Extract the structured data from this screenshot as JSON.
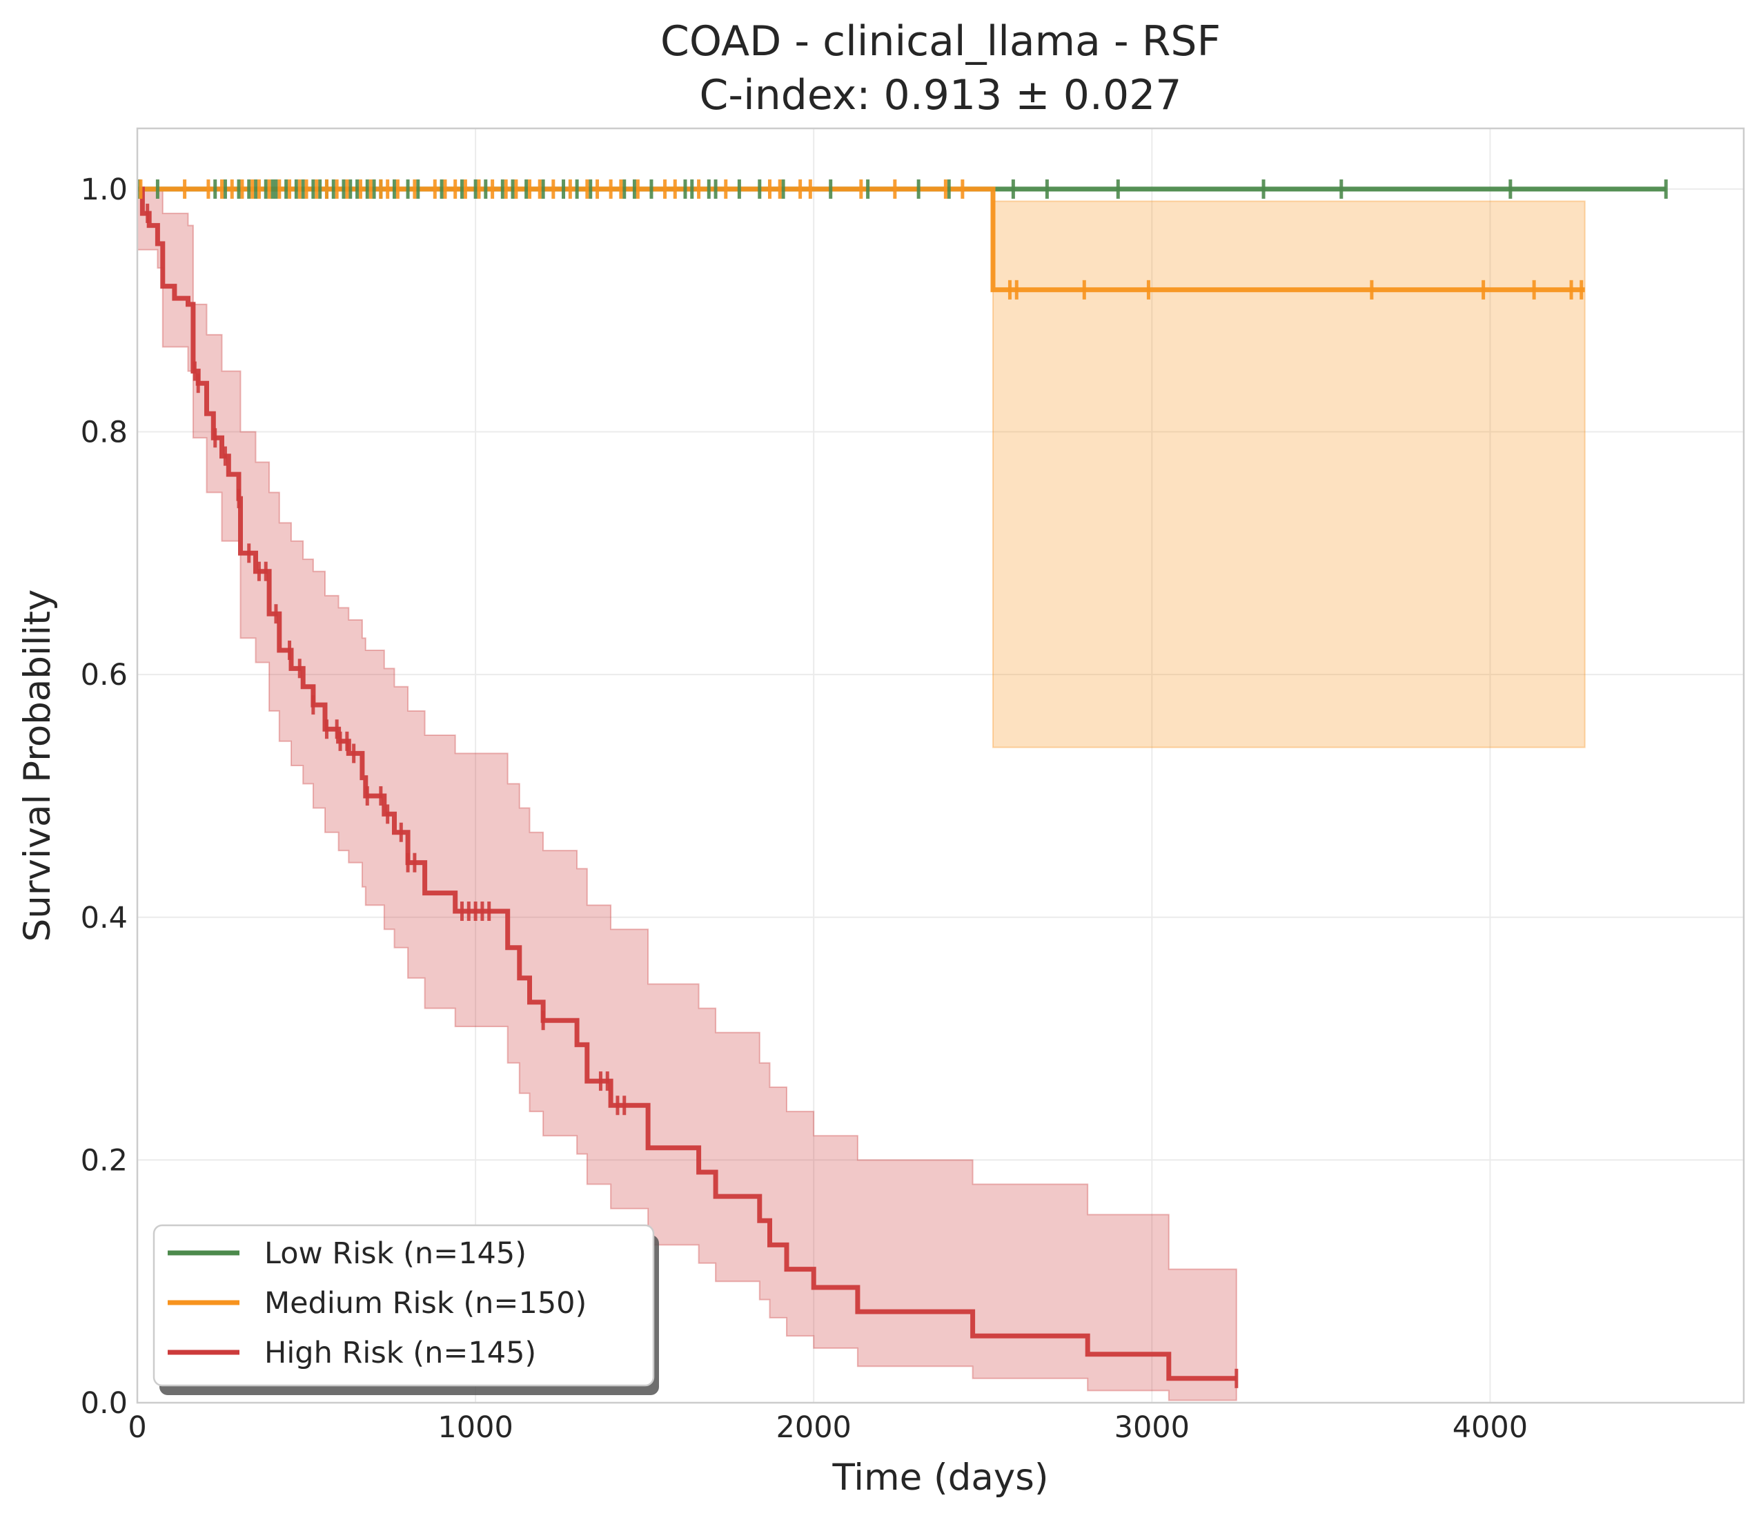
{
  "chart_data": {
    "type": "line",
    "subtype": "kaplan-meier",
    "title": "COAD - clinical_llama - RSF",
    "subtitle": "C-index: 0.913 ± 0.027",
    "xlabel": "Time (days)",
    "ylabel": "Survival Probability",
    "xlim": [
      0,
      4750
    ],
    "ylim": [
      0,
      1.05
    ],
    "x_ticks": [
      0,
      1000,
      2000,
      3000,
      4000
    ],
    "x_tick_labels": [
      "0",
      "1000",
      "2000",
      "3000",
      "4000"
    ],
    "y_ticks": [
      0.0,
      0.2,
      0.4,
      0.6,
      0.8,
      1.0
    ],
    "y_tick_labels": [
      "0.0",
      "0.2",
      "0.4",
      "0.6",
      "0.8",
      "1.0"
    ],
    "grid": true,
    "legend_position": "lower-left",
    "series": [
      {
        "name": "Low Risk (n=145)",
        "color": "#4c8a4c",
        "steps": [
          [
            0,
            1.0
          ],
          [
            4520,
            1.0
          ]
        ],
        "ci": [],
        "censors": [
          5,
          60,
          230,
          260,
          300,
          330,
          350,
          380,
          400,
          410,
          440,
          470,
          490,
          520,
          540,
          560,
          580,
          610,
          630,
          650,
          680,
          700,
          720,
          760,
          800,
          830,
          900,
          960,
          1000,
          1030,
          1080,
          1110,
          1150,
          1200,
          1260,
          1300,
          1340,
          1440,
          1470,
          1520,
          1620,
          1640,
          1690,
          1710,
          1780,
          1840,
          1910,
          2050,
          2160,
          2310,
          2400,
          2590,
          2690,
          2900,
          3330,
          3560,
          4060,
          4520
        ]
      },
      {
        "name": "Medium Risk (n=150)",
        "color": "#f7931e",
        "steps": [
          [
            0,
            1.0
          ],
          [
            2530,
            1.0
          ],
          [
            2530,
            0.917
          ],
          [
            4280,
            0.917
          ]
        ],
        "ci": [
          [
            2530,
            0.54,
            0.99
          ],
          [
            4280,
            0.54,
            0.99
          ]
        ],
        "censors": [
          10,
          140,
          210,
          250,
          280,
          310,
          340,
          360,
          390,
          420,
          450,
          480,
          500,
          530,
          560,
          590,
          620,
          660,
          690,
          720,
          740,
          770,
          820,
          880,
          910,
          940,
          970,
          1010,
          1050,
          1090,
          1120,
          1160,
          1190,
          1230,
          1280,
          1330,
          1360,
          1400,
          1430,
          1480,
          1560,
          1590,
          1660,
          1740,
          1870,
          1900,
          1960,
          1990,
          2140,
          2240,
          2390,
          2440,
          2580,
          2600,
          2800,
          2990,
          3650,
          3980,
          4130,
          4240,
          4270
        ],
        "censors_y": 1.0,
        "censors_after_step": [
          2580,
          2600,
          2800,
          2990,
          3650,
          3980,
          4130,
          4240,
          4270
        ]
      },
      {
        "name": "High Risk (n=145)",
        "color": "#cc3b3b",
        "steps": [
          [
            0,
            1.0
          ],
          [
            15,
            0.98
          ],
          [
            35,
            0.97
          ],
          [
            60,
            0.955
          ],
          [
            75,
            0.92
          ],
          [
            100,
            0.92
          ],
          [
            110,
            0.91
          ],
          [
            150,
            0.905
          ],
          [
            165,
            0.85
          ],
          [
            180,
            0.84
          ],
          [
            205,
            0.815
          ],
          [
            225,
            0.795
          ],
          [
            250,
            0.78
          ],
          [
            270,
            0.765
          ],
          [
            300,
            0.745
          ],
          [
            305,
            0.7
          ],
          [
            350,
            0.685
          ],
          [
            390,
            0.65
          ],
          [
            420,
            0.62
          ],
          [
            455,
            0.605
          ],
          [
            490,
            0.59
          ],
          [
            520,
            0.575
          ],
          [
            555,
            0.555
          ],
          [
            595,
            0.545
          ],
          [
            625,
            0.535
          ],
          [
            665,
            0.515
          ],
          [
            675,
            0.5
          ],
          [
            730,
            0.485
          ],
          [
            760,
            0.47
          ],
          [
            800,
            0.445
          ],
          [
            850,
            0.42
          ],
          [
            900,
            0.42
          ],
          [
            940,
            0.405
          ],
          [
            1095,
            0.375
          ],
          [
            1130,
            0.35
          ],
          [
            1160,
            0.33
          ],
          [
            1200,
            0.315
          ],
          [
            1300,
            0.295
          ],
          [
            1330,
            0.265
          ],
          [
            1400,
            0.245
          ],
          [
            1510,
            0.21
          ],
          [
            1660,
            0.19
          ],
          [
            1710,
            0.17
          ],
          [
            1840,
            0.15
          ],
          [
            1870,
            0.13
          ],
          [
            1920,
            0.11
          ],
          [
            2000,
            0.095
          ],
          [
            2130,
            0.075
          ],
          [
            2470,
            0.055
          ],
          [
            2810,
            0.04
          ],
          [
            3050,
            0.02
          ],
          [
            3250,
            0.02
          ]
        ],
        "ci": [
          [
            0,
            0.95,
            1.0
          ],
          [
            60,
            0.935,
            1.0
          ],
          [
            75,
            0.87,
            0.98
          ],
          [
            150,
            0.85,
            0.97
          ],
          [
            165,
            0.795,
            0.905
          ],
          [
            205,
            0.75,
            0.88
          ],
          [
            250,
            0.71,
            0.85
          ],
          [
            305,
            0.63,
            0.8
          ],
          [
            350,
            0.61,
            0.775
          ],
          [
            390,
            0.57,
            0.75
          ],
          [
            420,
            0.545,
            0.725
          ],
          [
            455,
            0.525,
            0.71
          ],
          [
            490,
            0.51,
            0.695
          ],
          [
            520,
            0.49,
            0.685
          ],
          [
            555,
            0.47,
            0.665
          ],
          [
            595,
            0.455,
            0.655
          ],
          [
            625,
            0.445,
            0.645
          ],
          [
            665,
            0.425,
            0.63
          ],
          [
            675,
            0.41,
            0.62
          ],
          [
            730,
            0.39,
            0.605
          ],
          [
            760,
            0.375,
            0.59
          ],
          [
            800,
            0.35,
            0.57
          ],
          [
            850,
            0.325,
            0.55
          ],
          [
            940,
            0.31,
            0.535
          ],
          [
            1095,
            0.28,
            0.51
          ],
          [
            1130,
            0.255,
            0.49
          ],
          [
            1160,
            0.24,
            0.47
          ],
          [
            1200,
            0.22,
            0.455
          ],
          [
            1300,
            0.205,
            0.44
          ],
          [
            1330,
            0.18,
            0.41
          ],
          [
            1400,
            0.16,
            0.39
          ],
          [
            1510,
            0.13,
            0.345
          ],
          [
            1660,
            0.115,
            0.325
          ],
          [
            1710,
            0.1,
            0.305
          ],
          [
            1840,
            0.085,
            0.28
          ],
          [
            1870,
            0.07,
            0.26
          ],
          [
            1920,
            0.055,
            0.24
          ],
          [
            2000,
            0.045,
            0.22
          ],
          [
            2130,
            0.03,
            0.2
          ],
          [
            2470,
            0.02,
            0.18
          ],
          [
            2810,
            0.01,
            0.155
          ],
          [
            3050,
            0.002,
            0.11
          ],
          [
            3250,
            0.002,
            0.11
          ]
        ],
        "censors": [
          30,
          170,
          180,
          230,
          260,
          300,
          330,
          360,
          380,
          410,
          450,
          480,
          520,
          560,
          590,
          600,
          620,
          640,
          680,
          720,
          740,
          780,
          800,
          820,
          960,
          980,
          1000,
          1020,
          1040,
          1200,
          1370,
          1390,
          1420,
          1440,
          3250
        ]
      }
    ]
  }
}
